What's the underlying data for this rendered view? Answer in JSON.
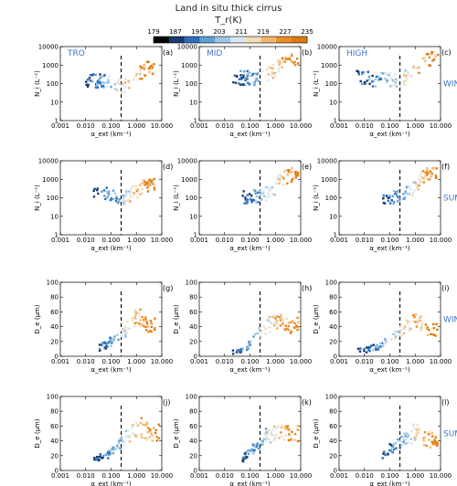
{
  "title": "Land in situ thick cirrus",
  "colorbar": {
    "label": "T_r(K)",
    "ticks": [
      "179",
      "187",
      "195",
      "203",
      "211",
      "219",
      "227",
      "235"
    ],
    "colors": [
      "#050505",
      "#173a70",
      "#2a6fb8",
      "#5f9fd4",
      "#9cc6e6",
      "#d7e6f2",
      "#f5dcb9",
      "#f5b46e",
      "#eb8d27",
      "#e07a0f"
    ]
  },
  "region_labels": [
    "TRO",
    "MID",
    "HIGH"
  ],
  "season_labels": [
    "WIN",
    "SUM"
  ],
  "x_axis": {
    "label": "α_ext (km⁻¹)",
    "ticks": [
      "0.001",
      "0.010",
      "0.100",
      "1.000",
      "10.000"
    ],
    "scale": "log",
    "range": [
      0.001,
      10
    ],
    "dashed_line_at": 0.25
  },
  "rows": [
    {
      "ylabel": "N_i (L⁻¹)",
      "scale": "log",
      "range": [
        1,
        10000
      ],
      "ticks": [
        "1",
        "10",
        "100",
        "1000",
        "10000"
      ]
    },
    {
      "ylabel": "N_i (L⁻¹)",
      "scale": "log",
      "range": [
        1,
        10000
      ],
      "ticks": [
        "1",
        "10",
        "100",
        "1000",
        "10000"
      ]
    },
    {
      "ylabel": "D_e (μm)",
      "scale": "linear",
      "range": [
        0,
        100
      ],
      "ticks": [
        "0",
        "20",
        "40",
        "60",
        "80",
        "100"
      ]
    },
    {
      "ylabel": "D_e (μm)",
      "scale": "linear",
      "range": [
        0,
        100
      ],
      "ticks": [
        "0",
        "20",
        "40",
        "60",
        "80",
        "100"
      ]
    }
  ],
  "panel_labels": [
    "(a)",
    "(b)",
    "(c)",
    "(d)",
    "(e)",
    "(f)",
    "(g)",
    "(h)",
    "(i)",
    "(j)",
    "(k)",
    "(l)"
  ],
  "chart_data": [
    {
      "panel": "(a)",
      "type": "scatter",
      "region": "TRO",
      "season": "WIN",
      "variable": "N_i",
      "x_range": [
        0.01,
        5
      ],
      "y_range": [
        30,
        1500
      ],
      "summary": [
        {
          "x": 0.02,
          "y": 150
        },
        {
          "x": 0.1,
          "y": 100
        },
        {
          "x": 0.3,
          "y": 60
        },
        {
          "x": 1,
          "y": 150
        },
        {
          "x": 3,
          "y": 800
        }
      ]
    },
    {
      "panel": "(b)",
      "type": "scatter",
      "region": "MID",
      "season": "WIN",
      "variable": "N_i",
      "x_range": [
        0.02,
        8
      ],
      "y_range": [
        30,
        4000
      ],
      "summary": [
        {
          "x": 0.03,
          "y": 200
        },
        {
          "x": 0.1,
          "y": 200
        },
        {
          "x": 0.3,
          "y": 180
        },
        {
          "x": 1,
          "y": 500
        },
        {
          "x": 5,
          "y": 2000
        }
      ]
    },
    {
      "panel": "(c)",
      "type": "scatter",
      "region": "HIGH",
      "season": "WIN",
      "variable": "N_i",
      "x_range": [
        0.005,
        8
      ],
      "y_range": [
        40,
        5000
      ],
      "summary": [
        {
          "x": 0.01,
          "y": 200
        },
        {
          "x": 0.05,
          "y": 150
        },
        {
          "x": 0.3,
          "y": 160
        },
        {
          "x": 1,
          "y": 400
        },
        {
          "x": 5,
          "y": 2500
        }
      ]
    },
    {
      "panel": "(d)",
      "type": "scatter",
      "region": "TRO",
      "season": "SUM",
      "variable": "N_i",
      "x_range": [
        0.02,
        6
      ],
      "y_range": [
        30,
        1500
      ],
      "summary": [
        {
          "x": 0.03,
          "y": 150
        },
        {
          "x": 0.1,
          "y": 150
        },
        {
          "x": 0.3,
          "y": 100
        },
        {
          "x": 1,
          "y": 200
        },
        {
          "x": 5,
          "y": 700
        }
      ]
    },
    {
      "panel": "(e)",
      "type": "scatter",
      "region": "MID",
      "season": "SUM",
      "variable": "N_i",
      "x_range": [
        0.05,
        8
      ],
      "y_range": [
        50,
        4000
      ],
      "summary": [
        {
          "x": 0.05,
          "y": 100
        },
        {
          "x": 0.3,
          "y": 120
        },
        {
          "x": 1,
          "y": 300
        },
        {
          "x": 5,
          "y": 2000
        }
      ]
    },
    {
      "panel": "(f)",
      "type": "scatter",
      "region": "HIGH",
      "season": "SUM",
      "variable": "N_i",
      "x_range": [
        0.05,
        8
      ],
      "y_range": [
        50,
        4000
      ],
      "summary": [
        {
          "x": 0.05,
          "y": 80
        },
        {
          "x": 0.3,
          "y": 120
        },
        {
          "x": 1,
          "y": 300
        },
        {
          "x": 5,
          "y": 2500
        }
      ]
    },
    {
      "panel": "(g)",
      "type": "scatter",
      "region": "TRO",
      "season": "WIN",
      "variable": "D_e",
      "x_range": [
        0.02,
        6
      ],
      "y_range": [
        5,
        70
      ],
      "summary": [
        {
          "x": 0.03,
          "y": 12
        },
        {
          "x": 0.1,
          "y": 20
        },
        {
          "x": 0.3,
          "y": 30
        },
        {
          "x": 1,
          "y": 55
        },
        {
          "x": 3,
          "y": 40
        }
      ]
    },
    {
      "panel": "(h)",
      "type": "scatter",
      "region": "MID",
      "season": "WIN",
      "variable": "D_e",
      "x_range": [
        0.02,
        8
      ],
      "y_range": [
        3,
        60
      ],
      "summary": [
        {
          "x": 0.03,
          "y": 5
        },
        {
          "x": 0.1,
          "y": 15
        },
        {
          "x": 0.3,
          "y": 35
        },
        {
          "x": 1,
          "y": 50
        },
        {
          "x": 5,
          "y": 40
        }
      ]
    },
    {
      "panel": "(i)",
      "type": "scatter",
      "region": "HIGH",
      "season": "WIN",
      "variable": "D_e",
      "x_range": [
        0.005,
        8
      ],
      "y_range": [
        3,
        80
      ],
      "summary": [
        {
          "x": 0.01,
          "y": 8
        },
        {
          "x": 0.05,
          "y": 15
        },
        {
          "x": 0.3,
          "y": 35
        },
        {
          "x": 1,
          "y": 52
        },
        {
          "x": 5,
          "y": 35
        }
      ]
    },
    {
      "panel": "(j)",
      "type": "scatter",
      "region": "TRO",
      "season": "SUM",
      "variable": "D_e",
      "x_range": [
        0.02,
        8
      ],
      "y_range": [
        10,
        90
      ],
      "summary": [
        {
          "x": 0.03,
          "y": 15
        },
        {
          "x": 0.1,
          "y": 25
        },
        {
          "x": 0.3,
          "y": 40
        },
        {
          "x": 1,
          "y": 60
        },
        {
          "x": 5,
          "y": 50
        }
      ]
    },
    {
      "panel": "(k)",
      "type": "scatter",
      "region": "MID",
      "season": "SUM",
      "variable": "D_e",
      "x_range": [
        0.05,
        8
      ],
      "y_range": [
        5,
        60
      ],
      "summary": [
        {
          "x": 0.05,
          "y": 15
        },
        {
          "x": 0.3,
          "y": 40
        },
        {
          "x": 1,
          "y": 55
        },
        {
          "x": 5,
          "y": 50
        }
      ]
    },
    {
      "panel": "(l)",
      "type": "scatter",
      "region": "HIGH",
      "season": "SUM",
      "variable": "D_e",
      "x_range": [
        0.05,
        8
      ],
      "y_range": [
        5,
        65
      ],
      "summary": [
        {
          "x": 0.05,
          "y": 20
        },
        {
          "x": 0.3,
          "y": 40
        },
        {
          "x": 1,
          "y": 52
        },
        {
          "x": 5,
          "y": 40
        }
      ]
    }
  ]
}
